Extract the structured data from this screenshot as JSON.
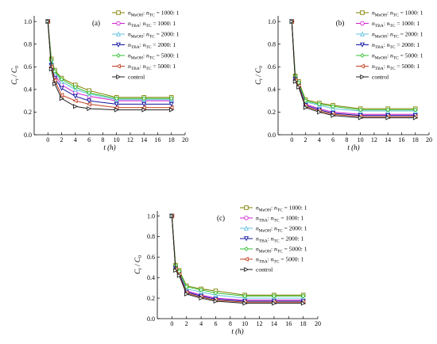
{
  "chart_data": [
    {
      "panel_label": "(a)",
      "type": "line",
      "xlabel": "t (h)",
      "ylabel": "C_t / C_0",
      "xlim": [
        -2,
        20
      ],
      "ylim": [
        0.0,
        1.05
      ],
      "xticks": [
        "0",
        "2",
        "4",
        "6",
        "8",
        "10",
        "12",
        "14",
        "16",
        "18",
        "20"
      ],
      "yticks": [
        "0.0",
        "0.2",
        "0.4",
        "0.6",
        "0.8",
        "1.0"
      ],
      "x": [
        0,
        0.5,
        1,
        2,
        4,
        6,
        10,
        14,
        18
      ],
      "series": [
        {
          "name": "n_MeOH : n_TC = 1000: 1",
          "color": "#808000",
          "values": [
            1.0,
            0.67,
            0.57,
            0.5,
            0.44,
            0.39,
            0.33,
            0.33,
            0.33
          ]
        },
        {
          "name": "n_TBA : n_TC = 1000: 1",
          "color": "#d020d0",
          "values": [
            1.0,
            0.63,
            0.53,
            0.44,
            0.37,
            0.34,
            0.3,
            0.3,
            0.3
          ]
        },
        {
          "name": "n_MeOH : n_TC = 2000: 1",
          "color": "#60c0e0",
          "values": [
            1.0,
            0.65,
            0.55,
            0.47,
            0.4,
            0.36,
            0.31,
            0.31,
            0.31
          ]
        },
        {
          "name": "n_TBA : n_TC = 2000: 1",
          "color": "#1010a0",
          "values": [
            1.0,
            0.61,
            0.5,
            0.41,
            0.34,
            0.3,
            0.27,
            0.27,
            0.27
          ]
        },
        {
          "name": "n_MeOH : n_TC = 5000: 1",
          "color": "#30c030",
          "values": [
            1.0,
            0.66,
            0.56,
            0.49,
            0.42,
            0.37,
            0.32,
            0.32,
            0.32
          ]
        },
        {
          "name": "n_TBA : n_TC = 5000: 1",
          "color": "#c04020",
          "values": [
            1.0,
            0.6,
            0.48,
            0.35,
            0.3,
            0.27,
            0.24,
            0.24,
            0.24
          ]
        },
        {
          "name": "control",
          "color": "#202020",
          "values": [
            1.0,
            0.58,
            0.45,
            0.32,
            0.25,
            0.23,
            0.22,
            0.22,
            0.22
          ]
        }
      ],
      "legend": "top-right"
    },
    {
      "panel_label": "(b)",
      "type": "line",
      "xlabel": "t (h)",
      "ylabel": "C_t / C_0",
      "xlim": [
        -2,
        20
      ],
      "ylim": [
        0.0,
        1.05
      ],
      "xticks": [
        "0",
        "2",
        "4",
        "6",
        "8",
        "10",
        "12",
        "14",
        "16",
        "18",
        "20"
      ],
      "yticks": [
        "0.0",
        "0.2",
        "0.4",
        "0.6",
        "0.8",
        "1.0"
      ],
      "x": [
        0,
        0.5,
        1,
        2,
        4,
        6,
        10,
        14,
        18
      ],
      "series": [
        {
          "name": "n_MeOH : n_TC = 1000: 1",
          "color": "#808000",
          "values": [
            1.0,
            0.52,
            0.47,
            0.31,
            0.28,
            0.26,
            0.23,
            0.23,
            0.23
          ]
        },
        {
          "name": "n_TBA : n_TC = 1000: 1",
          "color": "#d020d0",
          "values": [
            1.0,
            0.5,
            0.45,
            0.27,
            0.23,
            0.2,
            0.18,
            0.18,
            0.18
          ]
        },
        {
          "name": "n_MeOH : n_TC = 2000: 1",
          "color": "#60c0e0",
          "values": [
            1.0,
            0.51,
            0.46,
            0.29,
            0.26,
            0.23,
            0.21,
            0.21,
            0.21
          ]
        },
        {
          "name": "n_TBA : n_TC = 2000: 1",
          "color": "#1010a0",
          "values": [
            1.0,
            0.49,
            0.44,
            0.26,
            0.22,
            0.19,
            0.17,
            0.17,
            0.17
          ]
        },
        {
          "name": "n_MeOH : n_TC = 5000: 1",
          "color": "#30c030",
          "values": [
            1.0,
            0.52,
            0.46,
            0.3,
            0.27,
            0.25,
            0.22,
            0.22,
            0.22
          ]
        },
        {
          "name": "n_TBA : n_TC = 5000: 1",
          "color": "#c04020",
          "values": [
            1.0,
            0.48,
            0.43,
            0.25,
            0.21,
            0.18,
            0.16,
            0.16,
            0.16
          ]
        },
        {
          "name": "control",
          "color": "#202020",
          "values": [
            1.0,
            0.47,
            0.42,
            0.24,
            0.2,
            0.17,
            0.15,
            0.15,
            0.15
          ]
        }
      ],
      "legend": "top-right"
    },
    {
      "panel_label": "(c)",
      "type": "line",
      "xlabel": "t (h)",
      "ylabel": "C_t / C_0",
      "xlim": [
        -2,
        20
      ],
      "ylim": [
        0.0,
        1.05
      ],
      "xticks": [
        "0",
        "2",
        "4",
        "6",
        "8",
        "10",
        "12",
        "14",
        "16",
        "18",
        "20"
      ],
      "yticks": [
        "0.0",
        "0.2",
        "0.4",
        "0.6",
        "0.8",
        "1.0"
      ],
      "x": [
        0,
        0.5,
        1,
        2,
        4,
        6,
        10,
        14,
        18
      ],
      "series": [
        {
          "name": "n_MeOH : n_TC = 1000: 1",
          "color": "#808000",
          "values": [
            1.0,
            0.52,
            0.47,
            0.32,
            0.29,
            0.27,
            0.23,
            0.23,
            0.23
          ]
        },
        {
          "name": "n_TBA : n_TC = 1000: 1",
          "color": "#d020d0",
          "values": [
            1.0,
            0.5,
            0.45,
            0.27,
            0.23,
            0.2,
            0.18,
            0.18,
            0.18
          ]
        },
        {
          "name": "n_MeOH : n_TC = 2000: 1",
          "color": "#60c0e0",
          "values": [
            1.0,
            0.51,
            0.46,
            0.29,
            0.26,
            0.23,
            0.2,
            0.2,
            0.2
          ]
        },
        {
          "name": "n_TBA : n_TC = 2000: 1",
          "color": "#1010a0",
          "values": [
            1.0,
            0.49,
            0.44,
            0.26,
            0.22,
            0.19,
            0.17,
            0.17,
            0.17
          ]
        },
        {
          "name": "n_MeOH : n_TC = 5000: 1",
          "color": "#30c030",
          "values": [
            1.0,
            0.52,
            0.46,
            0.31,
            0.28,
            0.25,
            0.22,
            0.22,
            0.22
          ]
        },
        {
          "name": "n_TBA : n_TC = 5000: 1",
          "color": "#c04020",
          "values": [
            1.0,
            0.48,
            0.43,
            0.25,
            0.21,
            0.18,
            0.16,
            0.16,
            0.16
          ]
        },
        {
          "name": "control",
          "color": "#202020",
          "values": [
            1.0,
            0.47,
            0.42,
            0.24,
            0.2,
            0.17,
            0.15,
            0.15,
            0.15
          ]
        }
      ],
      "legend": "top-right"
    }
  ]
}
